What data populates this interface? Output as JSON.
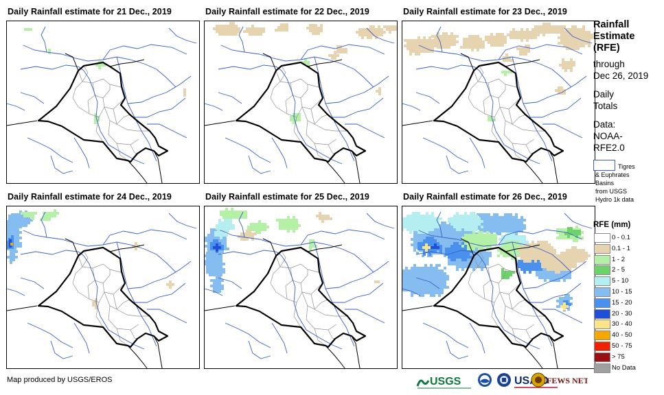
{
  "panels": [
    {
      "title": "Daily Rainfall estimate for 21 Dec., 2019"
    },
    {
      "title": "Daily Rainfall estimate for 22 Dec., 2019"
    },
    {
      "title": "Daily Rainfall estimate for 23 Dec., 2019"
    },
    {
      "title": "Daily Rainfall estimate for 24 Dec., 2019"
    },
    {
      "title": "Daily Rainfall estimate for 25 Dec., 2019"
    },
    {
      "title": "Daily Rainfall estimate for 26 Dec., 2019"
    }
  ],
  "legend": {
    "title_lines": [
      "Rainfall",
      "Estimate",
      "(RFE)"
    ],
    "through": "through",
    "date": "Dec 26, 2019",
    "daily": "Daily",
    "totals": "Totals",
    "data_label": "Data:",
    "data_source_1": "NOAA-",
    "data_source_2": "RFE2.0",
    "basin_line1": "Tigres",
    "basin_line2": "& Euphrates",
    "basin_line3": "Basins",
    "basin_line4": "from USGS",
    "basin_line5": "Hydro 1k data",
    "rfe_heading": "RFE (mm)",
    "classes": [
      {
        "label": "0 - 0.1",
        "color": "#ffffff"
      },
      {
        "label": "0.1 - 1",
        "color": "#e6d3b0"
      },
      {
        "label": "1 - 2",
        "color": "#b4f0a6"
      },
      {
        "label": "2 - 5",
        "color": "#6ed26a"
      },
      {
        "label": "5 - 10",
        "color": "#b4eef0"
      },
      {
        "label": "10 - 15",
        "color": "#86bdf0"
      },
      {
        "label": "15 - 20",
        "color": "#4a91ee"
      },
      {
        "label": "20 - 30",
        "color": "#1f4fd6"
      },
      {
        "label": "30 - 40",
        "color": "#fae58a"
      },
      {
        "label": "40 - 50",
        "color": "#f5a800"
      },
      {
        "label": "50 - 75",
        "color": "#ee2200"
      },
      {
        "label": "> 75",
        "color": "#9a1010"
      },
      {
        "label": "No Data",
        "color": "#a0a0a0"
      }
    ]
  },
  "footer": {
    "credit": "Map produced by USGS/EROS",
    "logo_usgs": "USGS",
    "logo_usaid": "USAID",
    "logo_fews": "FEWS NET"
  },
  "colors": {
    "basin": "#3a5fc8",
    "border": "#000000",
    "province": "#909090"
  }
}
